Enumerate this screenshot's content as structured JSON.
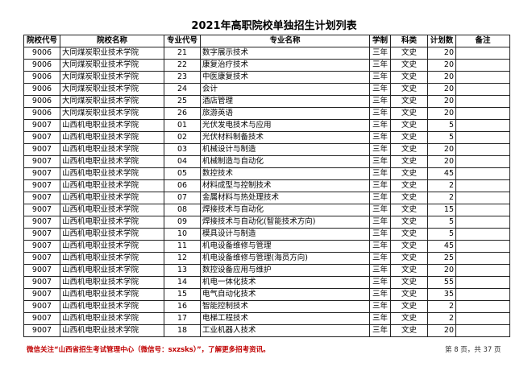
{
  "title": "2021年高职院校单独招生计划列表",
  "headers": [
    "院校代号",
    "院校名称",
    "专业代号",
    "专业名称",
    "学制",
    "科类",
    "计划数",
    "备注"
  ],
  "rows": [
    [
      "9006",
      "大同煤炭职业技术学院",
      "21",
      "数字展示技术",
      "三年",
      "文史",
      "20",
      ""
    ],
    [
      "9006",
      "大同煤炭职业技术学院",
      "22",
      "康复治疗技术",
      "三年",
      "文史",
      "20",
      ""
    ],
    [
      "9006",
      "大同煤炭职业技术学院",
      "23",
      "中医康复技术",
      "三年",
      "文史",
      "20",
      ""
    ],
    [
      "9006",
      "大同煤炭职业技术学院",
      "24",
      "会计",
      "三年",
      "文史",
      "20",
      ""
    ],
    [
      "9006",
      "大同煤炭职业技术学院",
      "25",
      "酒店管理",
      "三年",
      "文史",
      "20",
      ""
    ],
    [
      "9006",
      "大同煤炭职业技术学院",
      "26",
      "旅游英语",
      "三年",
      "文史",
      "20",
      ""
    ],
    [
      "9007",
      "山西机电职业技术学院",
      "01",
      "光伏发电技术与应用",
      "三年",
      "文史",
      "5",
      ""
    ],
    [
      "9007",
      "山西机电职业技术学院",
      "02",
      "光伏材料制备技术",
      "三年",
      "文史",
      "5",
      ""
    ],
    [
      "9007",
      "山西机电职业技术学院",
      "03",
      "机械设计与制造",
      "三年",
      "文史",
      "20",
      ""
    ],
    [
      "9007",
      "山西机电职业技术学院",
      "04",
      "机械制造与自动化",
      "三年",
      "文史",
      "20",
      ""
    ],
    [
      "9007",
      "山西机电职业技术学院",
      "05",
      "数控技术",
      "三年",
      "文史",
      "45",
      ""
    ],
    [
      "9007",
      "山西机电职业技术学院",
      "06",
      "材料成型与控制技术",
      "三年",
      "文史",
      "2",
      ""
    ],
    [
      "9007",
      "山西机电职业技术学院",
      "07",
      "金属材料与热处理技术",
      "三年",
      "文史",
      "2",
      ""
    ],
    [
      "9007",
      "山西机电职业技术学院",
      "08",
      "焊接技术与自动化",
      "三年",
      "文史",
      "15",
      ""
    ],
    [
      "9007",
      "山西机电职业技术学院",
      "09",
      "焊接技术与自动化(智能技术方向)",
      "三年",
      "文史",
      "5",
      ""
    ],
    [
      "9007",
      "山西机电职业技术学院",
      "10",
      "模具设计与制造",
      "三年",
      "文史",
      "5",
      ""
    ],
    [
      "9007",
      "山西机电职业技术学院",
      "11",
      "机电设备维修与管理",
      "三年",
      "文史",
      "45",
      ""
    ],
    [
      "9007",
      "山西机电职业技术学院",
      "12",
      "机电设备维修与管理(海员方向)",
      "三年",
      "文史",
      "25",
      ""
    ],
    [
      "9007",
      "山西机电职业技术学院",
      "13",
      "数控设备应用与维护",
      "三年",
      "文史",
      "20",
      ""
    ],
    [
      "9007",
      "山西机电职业技术学院",
      "14",
      "机电一体化技术",
      "三年",
      "文史",
      "55",
      ""
    ],
    [
      "9007",
      "山西机电职业技术学院",
      "15",
      "电气自动化技术",
      "三年",
      "文史",
      "35",
      ""
    ],
    [
      "9007",
      "山西机电职业技术学院",
      "16",
      "智能控制技术",
      "三年",
      "文史",
      "2",
      ""
    ],
    [
      "9007",
      "山西机电职业技术学院",
      "17",
      "电梯工程技术",
      "三年",
      "文史",
      "2",
      ""
    ],
    [
      "9007",
      "山西机电职业技术学院",
      "18",
      "工业机器人技术",
      "三年",
      "文史",
      "20",
      ""
    ]
  ],
  "footer": {
    "notice": "微信关注“山西省招生考试管理中心（微信号：sxzsks）”，了解更多招考资讯。",
    "page": "第 8 页，共 37 页",
    "notice_color": "#c00000"
  }
}
